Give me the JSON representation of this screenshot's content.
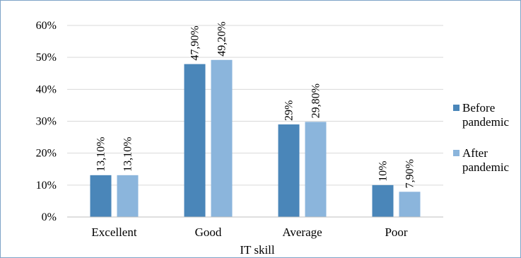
{
  "chart_data": {
    "type": "bar",
    "title": "",
    "xlabel": "IT skill",
    "ylabel": "",
    "categories": [
      "Excellent",
      "Good",
      "Average",
      "Poor"
    ],
    "series": [
      {
        "name": "Before pandemic",
        "legend_lines": [
          "Before",
          "pandemic"
        ],
        "color": "#4a86b9",
        "values": [
          13.1,
          47.9,
          29.0,
          10.0
        ],
        "labels": [
          "13,10%",
          "47,90%",
          "29%",
          "10%"
        ]
      },
      {
        "name": "After pandemic",
        "legend_lines": [
          "After",
          "pandemic"
        ],
        "color": "#8bb5dc",
        "values": [
          13.1,
          49.2,
          29.8,
          7.9
        ],
        "labels": [
          "13,10%",
          "49,20%",
          "29,80%",
          "7,90%"
        ]
      }
    ],
    "y_ticks": [
      "0%",
      "10%",
      "20%",
      "30%",
      "40%",
      "50%",
      "60%"
    ],
    "ylim": [
      0,
      60
    ],
    "grid": true,
    "legend_position": "right",
    "colors": {
      "gridline": "#d9d9d9",
      "axis": "#bfbfbf",
      "frame": "#7fa3c8"
    }
  }
}
